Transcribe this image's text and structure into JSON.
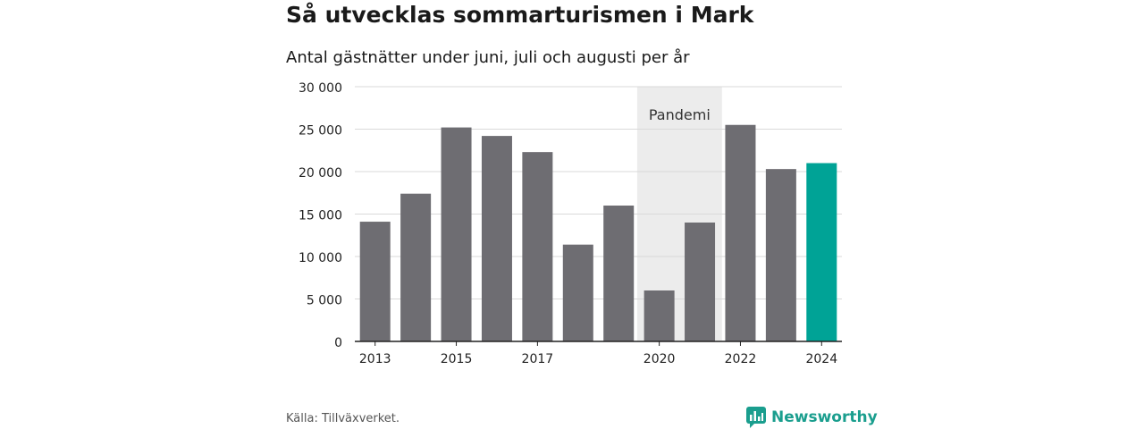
{
  "header": {
    "title": "Så utvecklas sommarturismen i Mark",
    "subtitle": "Antal gästnätter under juni, juli och augusti per år"
  },
  "footer": {
    "source": "Källa: Tillväxverket.",
    "brand": "Newsworthy",
    "brand_icon": "newsworthy-logo-icon"
  },
  "colors": {
    "bar": "#6e6d72",
    "highlight": "#00a396",
    "shade": "#ececec",
    "grid": "#d9d9d9",
    "brand": "#1a9e8e"
  },
  "chart_data": {
    "type": "bar",
    "categories": [
      "2013",
      "2014",
      "2015",
      "2016",
      "2017",
      "2018",
      "2019",
      "2020",
      "2021",
      "2022",
      "2023",
      "2024"
    ],
    "values": [
      14100,
      17400,
      25200,
      24200,
      22300,
      11400,
      16000,
      6000,
      14000,
      25500,
      20300,
      21000
    ],
    "tick_labels": [
      "2013",
      "2015",
      "2017",
      "2020",
      "2022",
      "2024"
    ],
    "highlight_category": "2024",
    "ylim": [
      0,
      30000
    ],
    "yticks": [
      0,
      5000,
      10000,
      15000,
      20000,
      25000,
      30000
    ],
    "ytick_labels": [
      "0",
      "5 000",
      "10 000",
      "15 000",
      "20 000",
      "25 000",
      "30 000"
    ],
    "grid": true,
    "annotation": {
      "label": "Pandemi",
      "from": "2020",
      "to": "2021"
    },
    "xlabel": "",
    "ylabel": ""
  }
}
